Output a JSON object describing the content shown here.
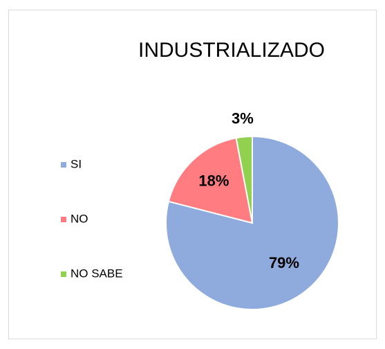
{
  "chart_data": {
    "type": "pie",
    "title": "INDUSTRIALIZADO",
    "categories": [
      "SI",
      "NO",
      "NO SABE"
    ],
    "values": [
      79,
      18,
      3
    ],
    "value_labels": [
      "79%",
      "18%",
      "3%"
    ],
    "colors": [
      "#8faadc",
      "#ff7c80",
      "#92d050"
    ],
    "legend": "left"
  }
}
